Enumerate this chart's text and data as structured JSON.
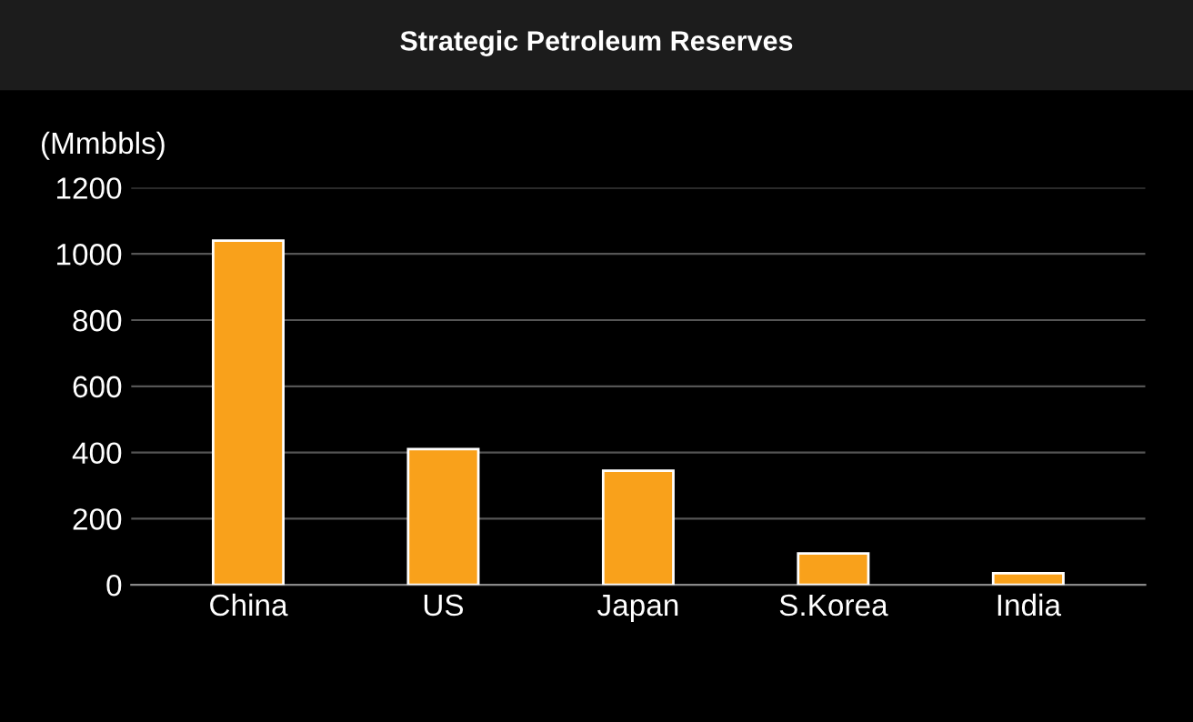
{
  "chart_data": {
    "type": "bar",
    "title": "Strategic Petroleum Reserves",
    "ylabel": "(Mmbbls)",
    "categories": [
      "China",
      "US",
      "Japan",
      "S.Korea",
      "India"
    ],
    "values": [
      1040,
      410,
      345,
      95,
      35
    ],
    "color": "#f9a11b",
    "ylim": [
      0,
      1200
    ],
    "yticks": [
      0,
      200,
      400,
      600,
      800,
      1000,
      1200
    ],
    "grid": "y"
  }
}
